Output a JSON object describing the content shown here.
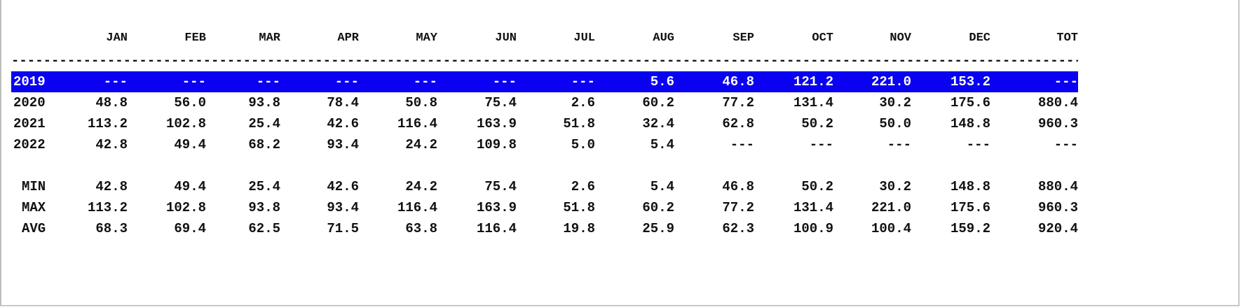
{
  "table": {
    "columns": [
      "JAN",
      "FEB",
      "MAR",
      "APR",
      "MAY",
      "JUN",
      "JUL",
      "AUG",
      "SEP",
      "OCT",
      "NOV",
      "DEC",
      "TOT"
    ],
    "separator": "--------------------------------------------------------------------------------------------------------------------------------------------",
    "rows": [
      {
        "year": "2019",
        "highlighted": true,
        "values": [
          "---",
          "---",
          "---",
          "---",
          "---",
          "---",
          "---",
          "5.6",
          "46.8",
          "121.2",
          "221.0",
          "153.2",
          "---"
        ]
      },
      {
        "year": "2020",
        "highlighted": false,
        "values": [
          "48.8",
          "56.0",
          "93.8",
          "78.4",
          "50.8",
          "75.4",
          "2.6",
          "60.2",
          "77.2",
          "131.4",
          "30.2",
          "175.6",
          "880.4"
        ]
      },
      {
        "year": "2021",
        "highlighted": false,
        "values": [
          "113.2",
          "102.8",
          "25.4",
          "42.6",
          "116.4",
          "163.9",
          "51.8",
          "32.4",
          "62.8",
          "50.2",
          "50.0",
          "148.8",
          "960.3"
        ]
      },
      {
        "year": "2022",
        "highlighted": false,
        "values": [
          "42.8",
          "49.4",
          "68.2",
          "93.4",
          "24.2",
          "109.8",
          "5.0",
          "5.4",
          "---",
          "---",
          "---",
          "---",
          "---"
        ]
      }
    ],
    "stats": [
      {
        "label": "MIN",
        "values": [
          "42.8",
          "49.4",
          "25.4",
          "42.6",
          "24.2",
          "75.4",
          "2.6",
          "5.4",
          "46.8",
          "50.2",
          "30.2",
          "148.8",
          "880.4"
        ]
      },
      {
        "label": "MAX",
        "values": [
          "113.2",
          "102.8",
          "93.8",
          "93.4",
          "116.4",
          "163.9",
          "51.8",
          "60.2",
          "77.2",
          "131.4",
          "221.0",
          "175.6",
          "960.3"
        ]
      },
      {
        "label": "AVG",
        "values": [
          "68.3",
          "69.4",
          "62.5",
          "71.5",
          "63.8",
          "116.4",
          "19.8",
          "25.9",
          "62.3",
          "100.9",
          "100.4",
          "159.2",
          "920.4"
        ]
      }
    ]
  },
  "colors": {
    "highlight": "#0a00f2",
    "highlight_text": "#ffffff",
    "text": "#111111"
  }
}
